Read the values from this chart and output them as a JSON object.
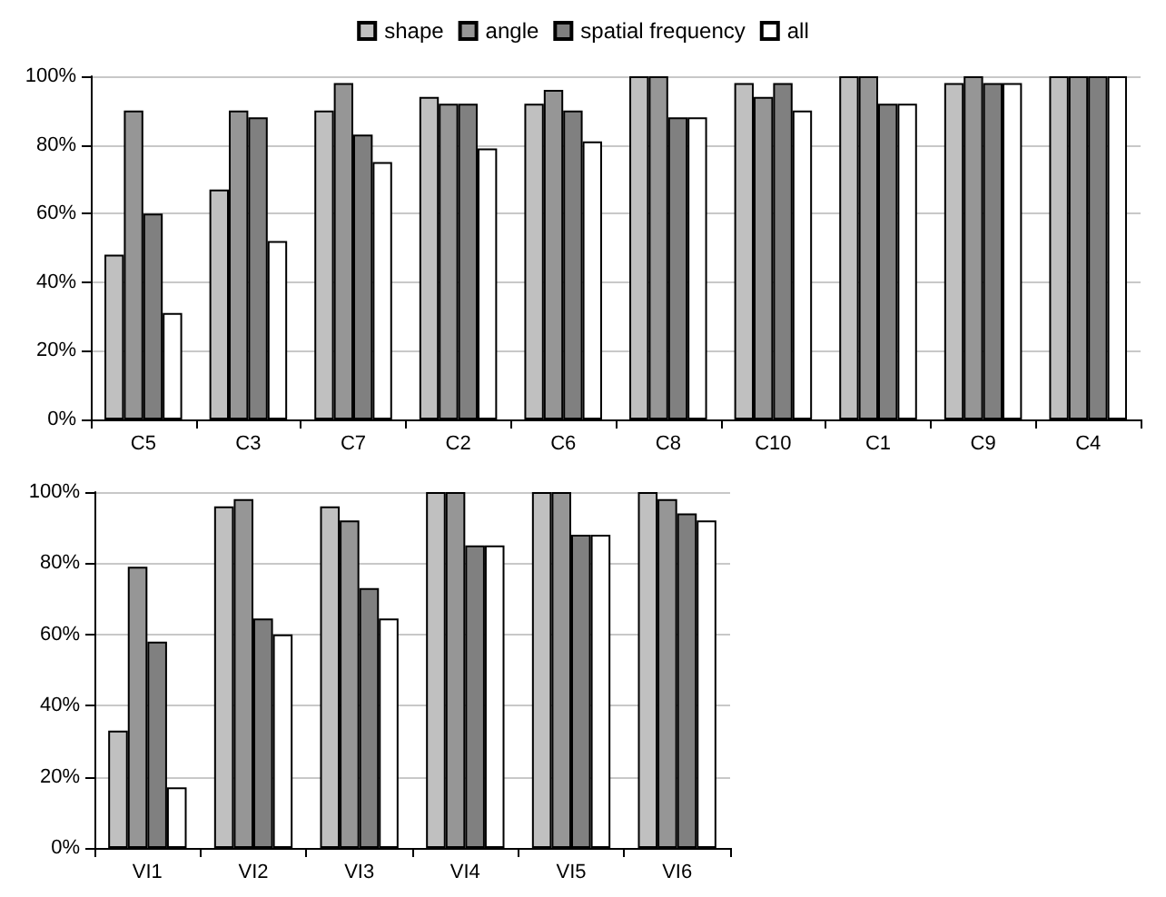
{
  "chart_data": [
    {
      "type": "bar",
      "categories": [
        "C5",
        "C3",
        "C7",
        "C2",
        "C6",
        "C8",
        "C10",
        "C1",
        "C9",
        "C4"
      ],
      "series": [
        {
          "name": "shape",
          "color": "#c0c0c0",
          "values": [
            48,
            67,
            90,
            94,
            92,
            100,
            98,
            100,
            98,
            100
          ]
        },
        {
          "name": "angle",
          "color": "#969696",
          "values": [
            90,
            90,
            98,
            92,
            96,
            100,
            94,
            100,
            100,
            100
          ]
        },
        {
          "name": "spatial frequency",
          "color": "#808080",
          "values": [
            60,
            88,
            83,
            92,
            90,
            88,
            98,
            92,
            98,
            100
          ]
        },
        {
          "name": "all",
          "color": "#ffffff",
          "values": [
            31,
            52,
            75,
            79,
            81,
            88,
            90,
            92,
            98,
            100
          ]
        }
      ],
      "ylim": [
        0,
        100
      ],
      "yticks": [
        {
          "value": 0,
          "label": "0%"
        },
        {
          "value": 20,
          "label": "20%"
        },
        {
          "value": 40,
          "label": "40%"
        },
        {
          "value": 60,
          "label": "60%"
        },
        {
          "value": 80,
          "label": "80%"
        },
        {
          "value": 100,
          "label": "100%"
        }
      ],
      "grid": "y",
      "legend": "top"
    },
    {
      "type": "bar",
      "categories": [
        "VI1",
        "VI2",
        "VI3",
        "VI4",
        "VI5",
        "VI6"
      ],
      "series": [
        {
          "color": "#c0c0c0",
          "values": [
            33,
            96,
            96,
            100,
            100,
            100
          ]
        },
        {
          "color": "#969696",
          "values": [
            79,
            98,
            92,
            100,
            100,
            98
          ]
        },
        {
          "color": "#808080",
          "values": [
            58,
            64.5,
            73,
            85,
            88,
            94
          ]
        },
        {
          "color": "#ffffff",
          "values": [
            17,
            60,
            64.5,
            85,
            88,
            92
          ]
        }
      ],
      "ylim": [
        0,
        100
      ],
      "yticks": [
        {
          "value": 0,
          "label": "0%"
        },
        {
          "value": 20,
          "label": "20%"
        },
        {
          "value": 40,
          "label": "40%"
        },
        {
          "value": 60,
          "label": "60%"
        },
        {
          "value": 80,
          "label": "80%"
        },
        {
          "value": 100,
          "label": "100%"
        }
      ],
      "grid": "y",
      "legend": false
    }
  ]
}
